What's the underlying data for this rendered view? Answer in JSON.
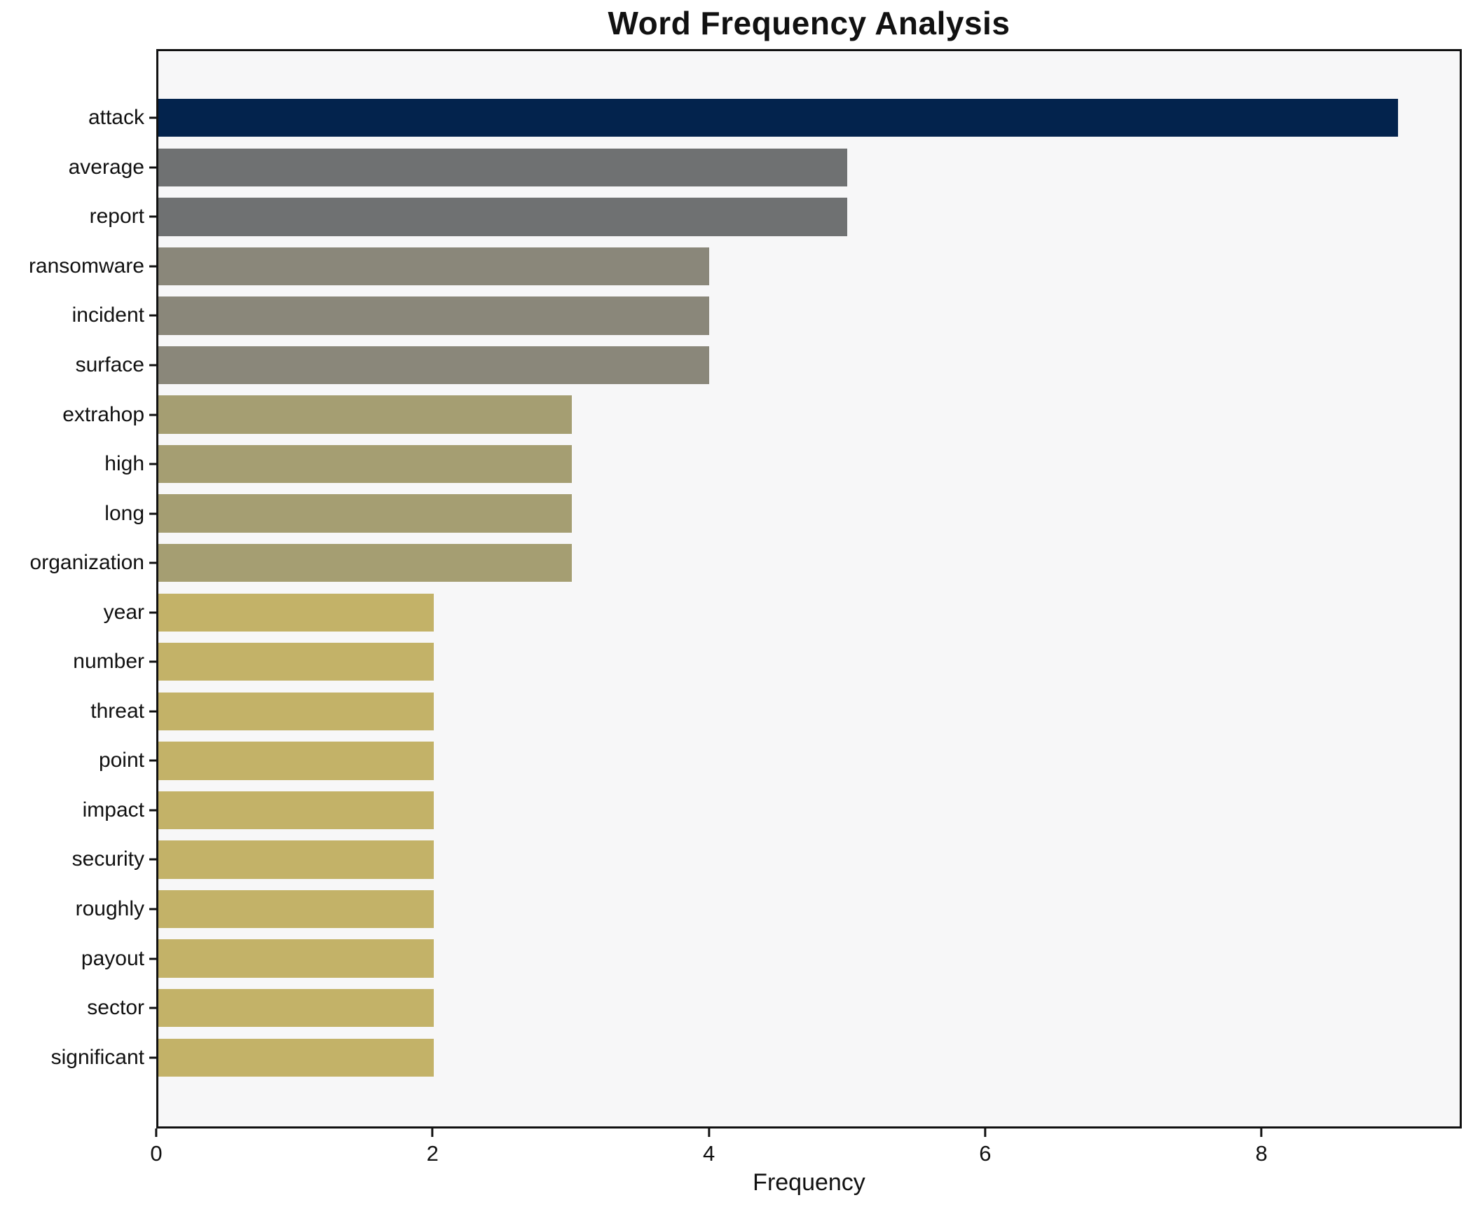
{
  "chart_data": {
    "type": "bar",
    "orientation": "horizontal",
    "title": "Word Frequency Analysis",
    "xlabel": "Frequency",
    "ylabel": "",
    "categories": [
      "attack",
      "average",
      "report",
      "ransomware",
      "incident",
      "surface",
      "extrahop",
      "high",
      "long",
      "organization",
      "year",
      "number",
      "threat",
      "point",
      "impact",
      "security",
      "roughly",
      "payout",
      "sector",
      "significant"
    ],
    "values": [
      9,
      5,
      5,
      4,
      4,
      4,
      3,
      3,
      3,
      3,
      2,
      2,
      2,
      2,
      2,
      2,
      2,
      2,
      2,
      2
    ],
    "bar_colors": [
      "#03234d",
      "#6f7172",
      "#6f7172",
      "#8a877a",
      "#8a877a",
      "#8a877a",
      "#a59e72",
      "#a59e72",
      "#a59e72",
      "#a59e72",
      "#c3b268",
      "#c3b268",
      "#c3b268",
      "#c3b268",
      "#c3b268",
      "#c3b268",
      "#c3b268",
      "#c3b268",
      "#c3b268",
      "#c3b268"
    ],
    "xlim": [
      0,
      9.45
    ],
    "x_ticks": [
      0,
      2,
      4,
      6,
      8
    ],
    "grid": false,
    "legend": null
  },
  "style": {
    "figure_bg": "#ffffff",
    "axes_bg": "#f7f7f8",
    "spine_color": "#111111",
    "text_color": "#111111"
  }
}
